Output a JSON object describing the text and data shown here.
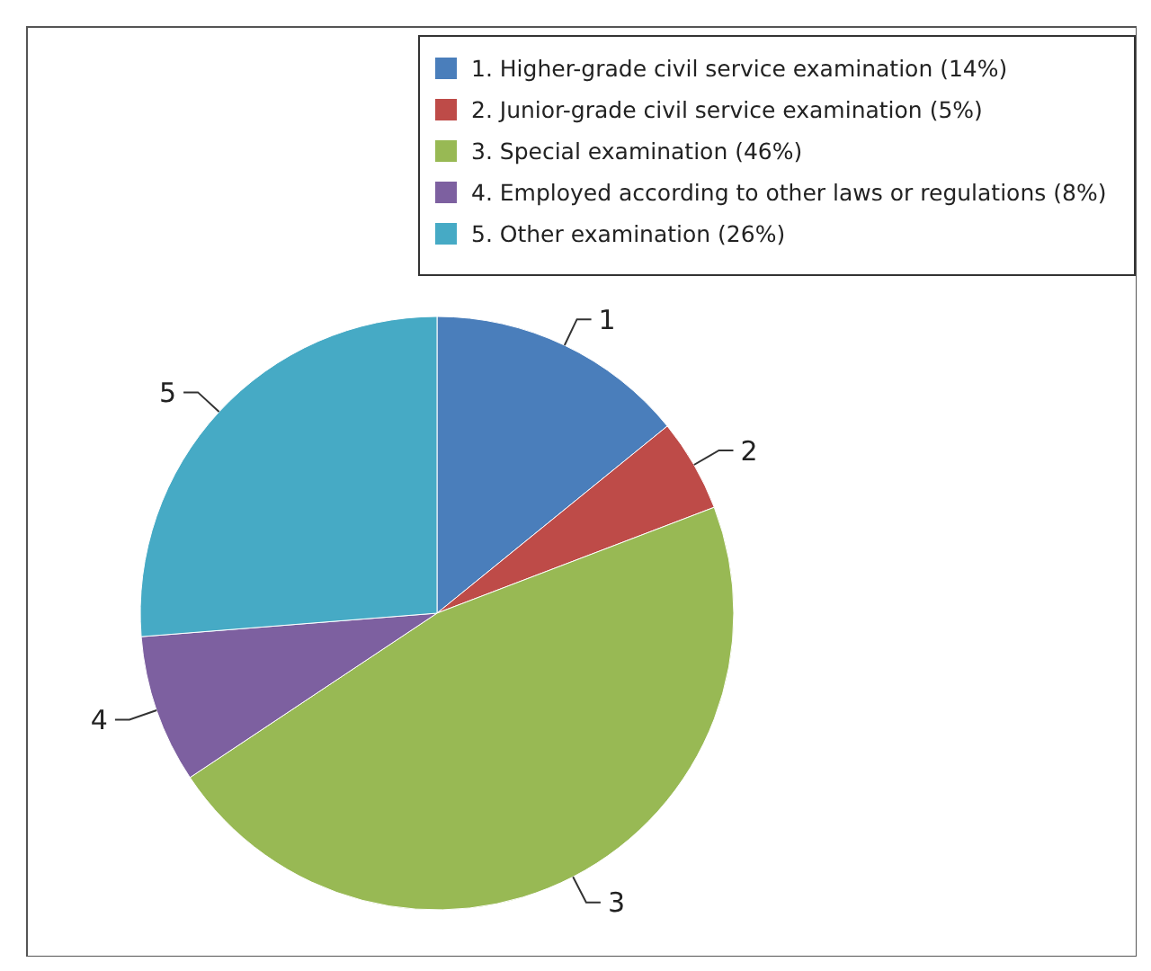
{
  "chart_data": {
    "type": "pie",
    "categories": [
      "1. Higher-grade civil service examination (14%)",
      "2. Junior-grade civil service examination (5%)",
      "3. Special examination (46%)",
      "4. Employed according to other laws or regulations (8%)",
      "5. Other examination (26%)"
    ],
    "values": [
      14,
      5,
      46,
      8,
      26
    ],
    "colors": [
      "#4a7ebb",
      "#be4b48",
      "#98b954",
      "#7d60a0",
      "#46aac5"
    ],
    "annotations": [
      "1",
      "2",
      "3",
      "4",
      "5"
    ],
    "legend": "top right"
  }
}
